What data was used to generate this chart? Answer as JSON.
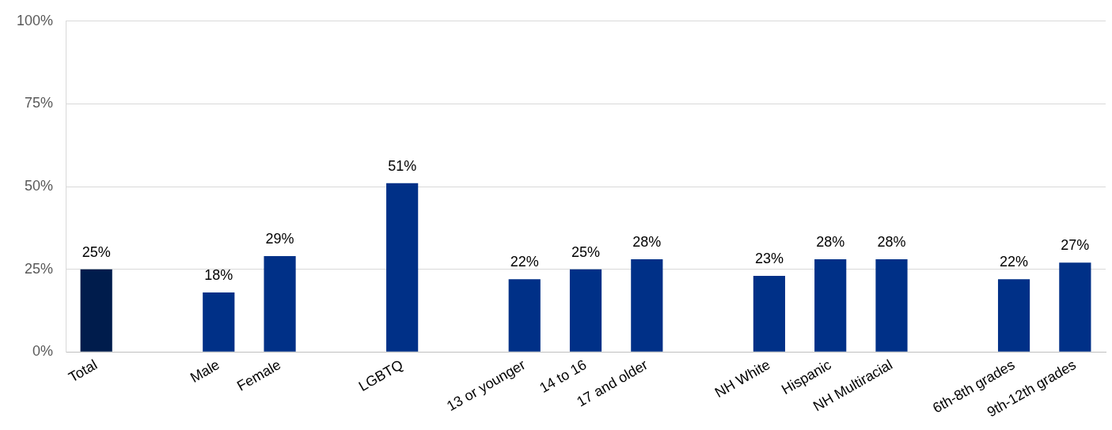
{
  "chart_data": {
    "type": "bar",
    "categories": [
      "Total",
      null,
      "Male",
      "Female",
      null,
      "LGBTQ",
      null,
      "13 or younger",
      "14 to 16",
      "17 and older",
      null,
      "NH White",
      "Hispanic",
      "NH Multiracial",
      null,
      "6th-8th grades",
      "9th-12th grades"
    ],
    "values": [
      25,
      null,
      18,
      29,
      null,
      51,
      null,
      22,
      25,
      28,
      null,
      23,
      28,
      28,
      null,
      22,
      27
    ],
    "colors": [
      "#001c4c",
      null,
      "#003087",
      "#003087",
      null,
      "#003087",
      null,
      "#003087",
      "#003087",
      "#003087",
      null,
      "#003087",
      "#003087",
      "#003087",
      null,
      "#003087",
      "#003087"
    ],
    "value_labels": [
      "25%",
      null,
      "18%",
      "29%",
      null,
      "51%",
      null,
      "22%",
      "25%",
      "28%",
      null,
      "23%",
      "28%",
      "28%",
      null,
      "22%",
      "27%"
    ],
    "ylim": [
      0,
      100
    ],
    "yticks": [
      {
        "value": 0,
        "label": "0%"
      },
      {
        "value": 25,
        "label": "25%"
      },
      {
        "value": 50,
        "label": "50%"
      },
      {
        "value": 75,
        "label": "75%"
      },
      {
        "value": 100,
        "label": "100%"
      }
    ],
    "grid": "y",
    "legend": false
  }
}
